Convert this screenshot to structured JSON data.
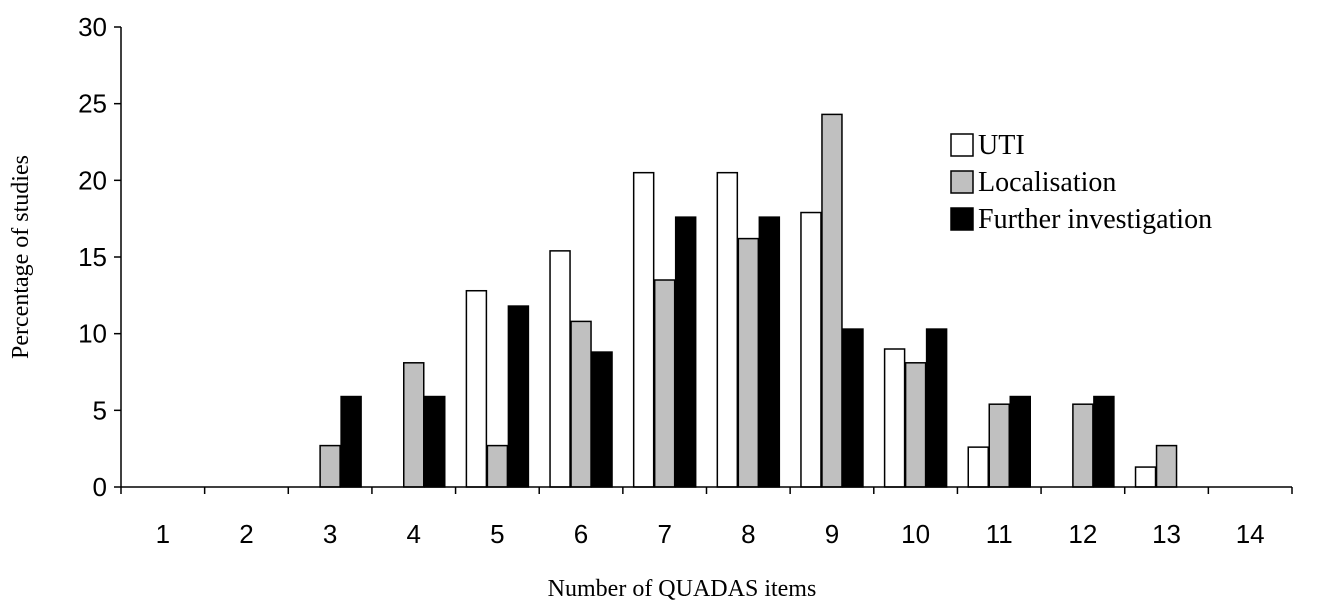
{
  "chart_data": {
    "type": "bar",
    "categories": [
      "1",
      "2",
      "3",
      "4",
      "5",
      "6",
      "7",
      "8",
      "9",
      "10",
      "11",
      "12",
      "13",
      "14"
    ],
    "series": [
      {
        "name": "UTI",
        "color": "#ffffff",
        "values": [
          0,
          0,
          0,
          0,
          12.8,
          15.4,
          20.5,
          20.5,
          17.9,
          9.0,
          2.6,
          0,
          1.3,
          0
        ]
      },
      {
        "name": "Localisation",
        "color": "#c0c0c0",
        "values": [
          0,
          0,
          2.7,
          8.1,
          2.7,
          10.8,
          13.5,
          16.2,
          24.3,
          8.1,
          5.4,
          5.4,
          2.7,
          0
        ]
      },
      {
        "name": "Further investigation",
        "color": "#000000",
        "values": [
          0,
          0,
          5.9,
          5.9,
          11.8,
          8.8,
          17.6,
          17.6,
          10.3,
          10.3,
          5.9,
          5.9,
          0,
          0
        ]
      }
    ],
    "xlabel": "Number of QUADAS items",
    "ylabel": "Percentage of studies",
    "ylim": [
      0,
      30
    ],
    "yticks": [
      "0",
      "5",
      "10",
      "15",
      "20",
      "25",
      "30"
    ],
    "grid": false,
    "legend_position": "top-right"
  }
}
